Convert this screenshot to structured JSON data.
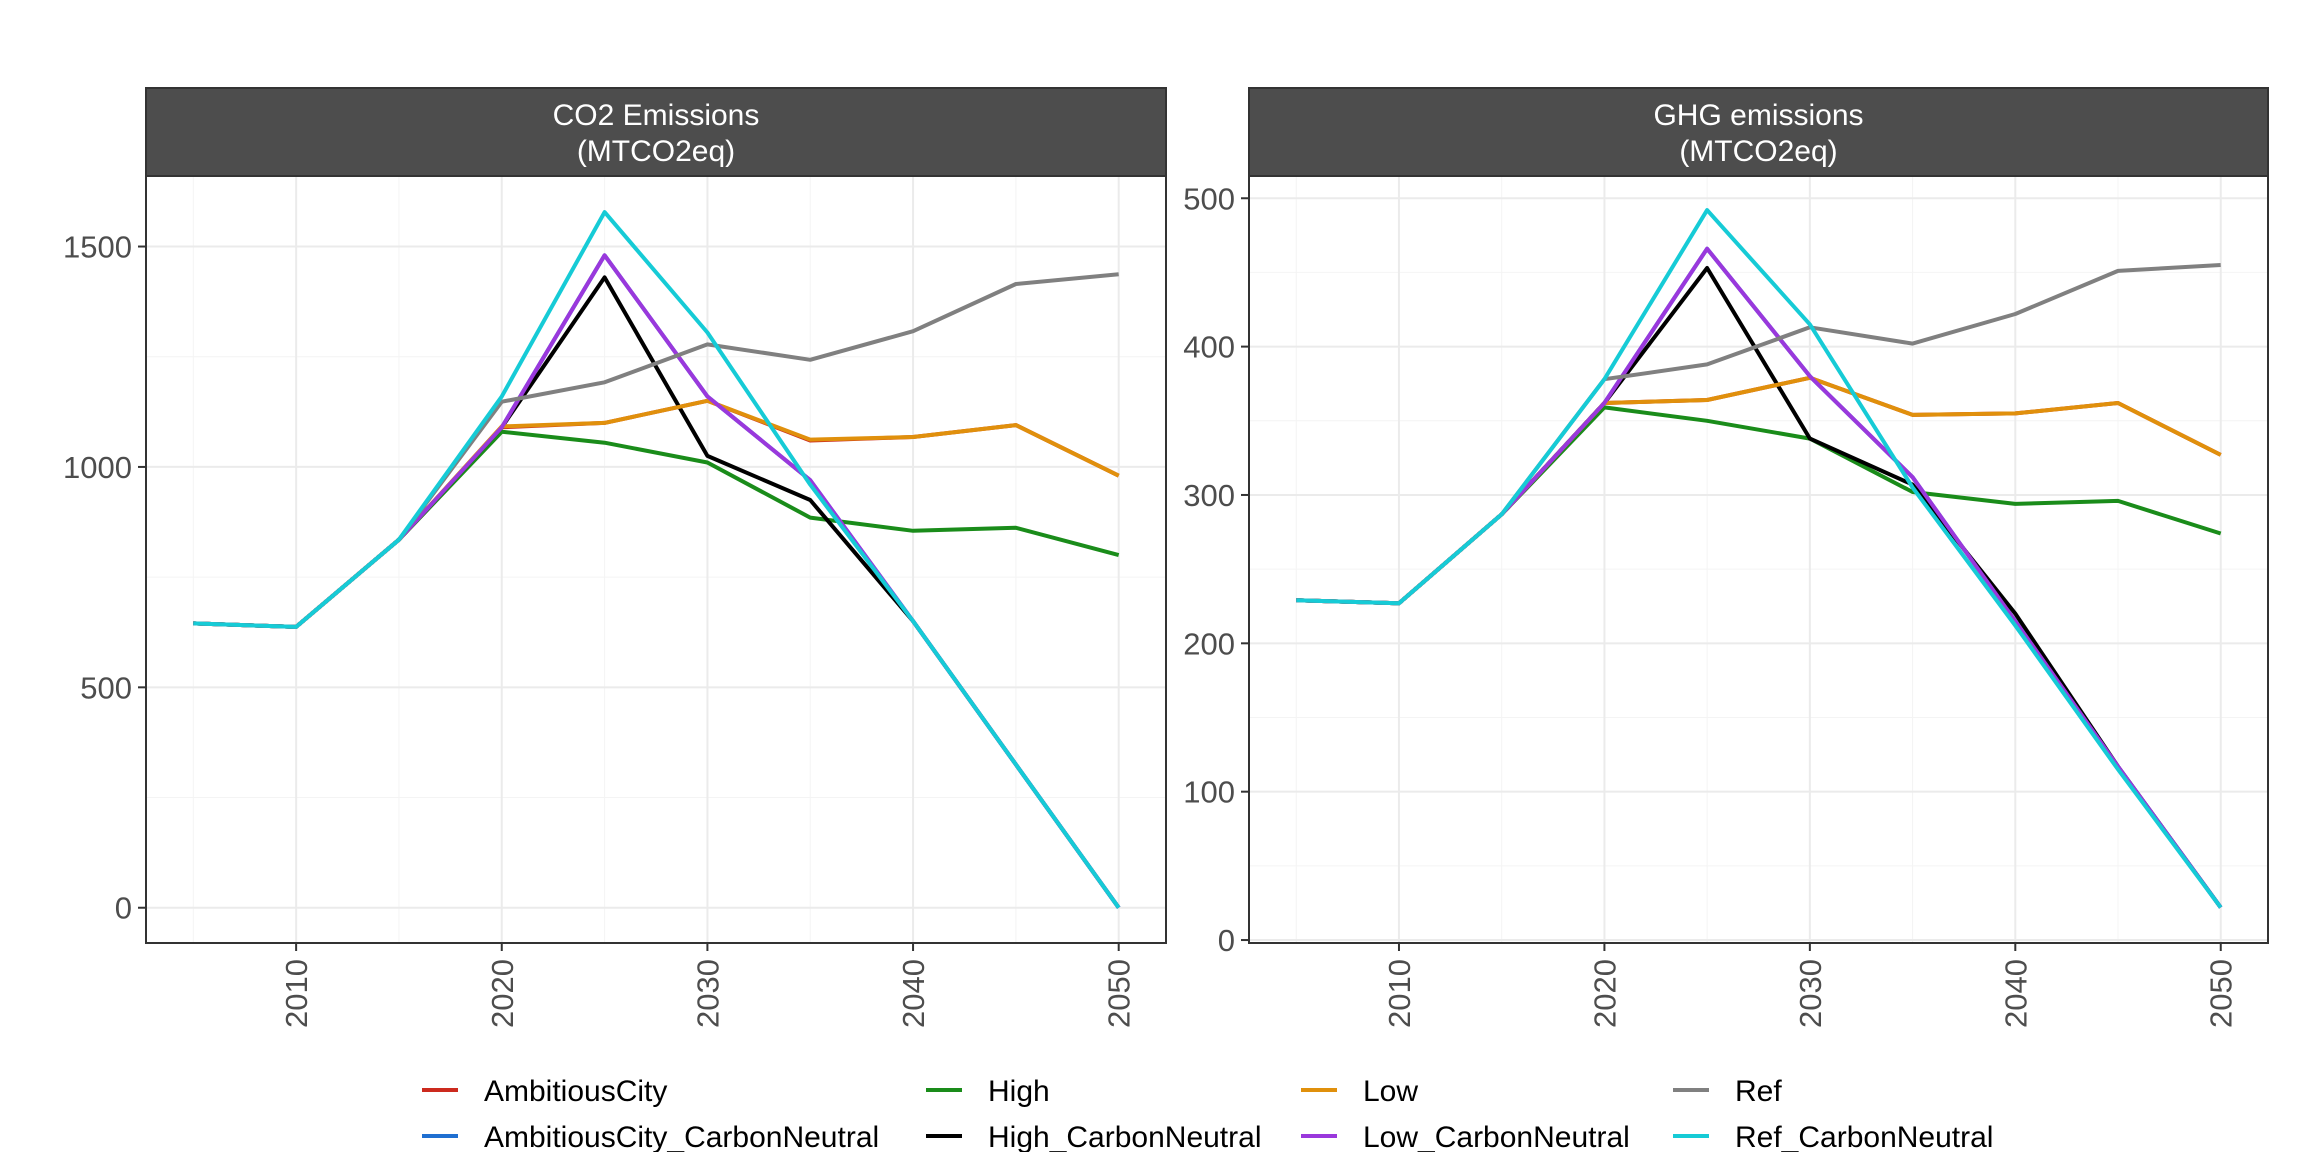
{
  "chart_data": [
    {
      "type": "line",
      "title": "CO2 Emissions\n(MTCO2eq)",
      "title_lines": [
        "CO2 Emissions",
        "(MTCO2eq)"
      ],
      "xlabel": "",
      "ylabel": "",
      "x": [
        2005,
        2010,
        2015,
        2020,
        2025,
        2030,
        2035,
        2040,
        2045,
        2050
      ],
      "xlim": [
        2002.7,
        2052.3
      ],
      "ylim": [
        -80,
        1660
      ],
      "xticks": [
        2010,
        2020,
        2030,
        2040,
        2050
      ],
      "yticks": [
        0,
        500,
        1000,
        1500
      ],
      "grid": true,
      "series": [
        {
          "name": "AmbitiousCity",
          "color": "#cc2a1e",
          "values": [
            645,
            637,
            835,
            1090,
            1100,
            1150,
            1060,
            1068,
            1095,
            980
          ]
        },
        {
          "name": "AmbitiousCity_CarbonNeutral",
          "color": "#1f6fd1",
          "values": [
            645,
            637,
            835,
            1090,
            1480,
            1160,
            970,
            650,
            325,
            0
          ]
        },
        {
          "name": "High",
          "color": "#1a8c1a",
          "values": [
            645,
            637,
            835,
            1080,
            1055,
            1010,
            885,
            855,
            862,
            800
          ]
        },
        {
          "name": "High_CarbonNeutral",
          "color": "#000000",
          "values": [
            645,
            637,
            835,
            1090,
            1430,
            1025,
            925,
            650,
            325,
            0
          ]
        },
        {
          "name": "Low",
          "color": "#e0900c",
          "values": [
            645,
            637,
            835,
            1092,
            1100,
            1150,
            1062,
            1068,
            1095,
            980
          ]
        },
        {
          "name": "Low_CarbonNeutral",
          "color": "#9a38dc",
          "values": [
            645,
            637,
            835,
            1090,
            1480,
            1160,
            970,
            650,
            325,
            0
          ]
        },
        {
          "name": "Ref",
          "color": "#808080",
          "values": [
            645,
            637,
            835,
            1148,
            1192,
            1278,
            1243,
            1308,
            1415,
            1437
          ]
        },
        {
          "name": "Ref_CarbonNeutral",
          "color": "#16cbd6",
          "values": [
            645,
            637,
            835,
            1160,
            1578,
            1305,
            960,
            650,
            325,
            0
          ]
        }
      ]
    },
    {
      "type": "line",
      "title": "GHG emissions\n(MTCO2eq)",
      "title_lines": [
        "GHG emissions",
        "(MTCO2eq)"
      ],
      "xlabel": "",
      "ylabel": "",
      "x": [
        2005,
        2010,
        2015,
        2020,
        2025,
        2030,
        2035,
        2040,
        2045,
        2050
      ],
      "xlim": [
        2002.7,
        2052.3
      ],
      "ylim": [
        -2,
        515
      ],
      "xticks": [
        2010,
        2020,
        2030,
        2040,
        2050
      ],
      "yticks": [
        0,
        100,
        200,
        300,
        400,
        500
      ],
      "grid": true,
      "series": [
        {
          "name": "AmbitiousCity",
          "color": "#cc2a1e",
          "values": [
            229,
            227,
            287,
            362,
            364,
            379,
            354,
            355,
            362,
            327
          ]
        },
        {
          "name": "AmbitiousCity_CarbonNeutral",
          "color": "#1f6fd1",
          "values": [
            229,
            227,
            287,
            362,
            466,
            380,
            312,
            215,
            117,
            22
          ]
        },
        {
          "name": "High",
          "color": "#1a8c1a",
          "values": [
            229,
            227,
            287,
            359,
            350,
            338,
            302,
            294,
            296,
            274
          ]
        },
        {
          "name": "High_CarbonNeutral",
          "color": "#000000",
          "values": [
            229,
            227,
            287,
            362,
            453,
            338,
            307,
            220,
            117,
            22
          ]
        },
        {
          "name": "Low",
          "color": "#e0900c",
          "values": [
            229,
            227,
            287,
            362,
            364,
            379,
            354,
            355,
            362,
            327
          ]
        },
        {
          "name": "Low_CarbonNeutral",
          "color": "#9a38dc",
          "values": [
            229,
            227,
            287,
            362,
            466,
            380,
            312,
            215,
            117,
            22
          ]
        },
        {
          "name": "Ref",
          "color": "#808080",
          "values": [
            229,
            227,
            287,
            378,
            388,
            413,
            402,
            422,
            451,
            455
          ]
        },
        {
          "name": "Ref_CarbonNeutral",
          "color": "#16cbd6",
          "values": [
            229,
            227,
            287,
            378,
            492,
            415,
            305,
            212,
            115,
            22
          ]
        }
      ]
    }
  ],
  "legend": {
    "position": "bottom",
    "ncol": 4,
    "entries": [
      {
        "label": "AmbitiousCity",
        "color": "#cc2a1e"
      },
      {
        "label": "AmbitiousCity_CarbonNeutral",
        "color": "#1f6fd1"
      },
      {
        "label": "High",
        "color": "#1a8c1a"
      },
      {
        "label": "High_CarbonNeutral",
        "color": "#000000"
      },
      {
        "label": "Low",
        "color": "#e0900c"
      },
      {
        "label": "Low_CarbonNeutral",
        "color": "#9a38dc"
      },
      {
        "label": "Ref",
        "color": "#808080"
      },
      {
        "label": "Ref_CarbonNeutral",
        "color": "#16cbd6"
      }
    ]
  }
}
